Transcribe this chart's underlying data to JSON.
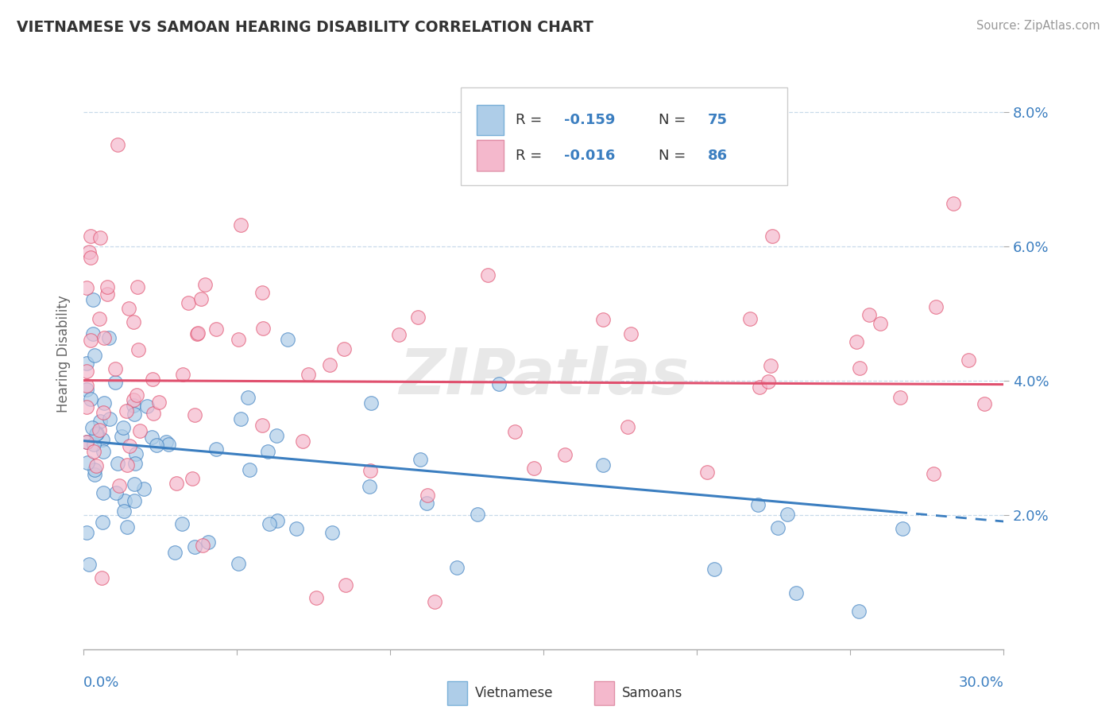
{
  "title": "VIETNAMESE VS SAMOAN HEARING DISABILITY CORRELATION CHART",
  "source": "Source: ZipAtlas.com",
  "ylabel": "Hearing Disability",
  "xmin": 0.0,
  "xmax": 0.3,
  "ymin": 0.0,
  "ymax": 0.088,
  "yticks": [
    0.02,
    0.04,
    0.06,
    0.08
  ],
  "ytick_labels": [
    "2.0%",
    "4.0%",
    "6.0%",
    "8.0%"
  ],
  "color_vietnamese": "#aecde8",
  "color_samoans": "#f4b8cc",
  "color_line_vietnamese": "#3b7ec0",
  "color_line_samoans": "#e0506e",
  "color_viet_edge": "#3b7ec0",
  "color_samoa_edge": "#e0506e",
  "color_axis_text": "#3b7ec0",
  "color_title": "#333333",
  "background": "#ffffff",
  "grid_color": "#c8daea",
  "legend_r_color": "#3b7ec0",
  "legend_n_color": "#3b7ec0"
}
